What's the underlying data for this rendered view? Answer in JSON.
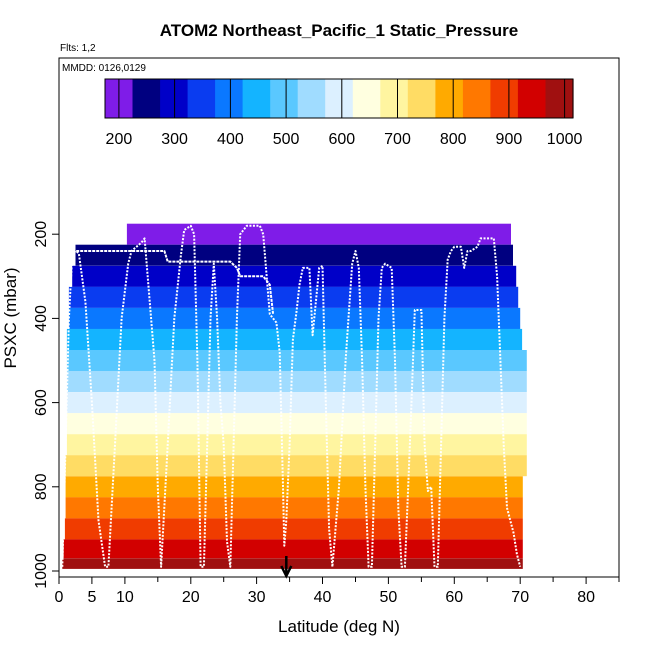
{
  "chart_data": {
    "type": "heatmap",
    "title": "ATOM2 Northeast_Pacific_1 Static_Pressure",
    "flights_note": "Flts: 1,2",
    "dates_note": "MMDD: 0126,0129",
    "xlabel": "Latitude (deg N)",
    "ylabel": "PSXC (mbar)",
    "xlim": [
      0,
      85
    ],
    "ylim": [
      1000,
      0
    ],
    "x_ticks": [
      0,
      5,
      10,
      20,
      30,
      40,
      50,
      60,
      70,
      80
    ],
    "y_ticks": [
      200,
      400,
      600,
      800,
      1000
    ],
    "colorbar": {
      "min": 175,
      "max": 1015,
      "ticks": [
        200,
        300,
        400,
        500,
        600,
        700,
        800,
        900,
        1000
      ],
      "colors": [
        "#7F1CE8",
        "#000080",
        "#0000C8",
        "#0A3CF0",
        "#0A78FF",
        "#14B4FF",
        "#5AC8FF",
        "#A0DCFF",
        "#DCF0FF",
        "#FFFFE0",
        "#FFF5A0",
        "#FFDC64",
        "#FFAA00",
        "#FF7800",
        "#F03C00",
        "#D20000",
        "#A01010"
      ]
    },
    "bands": [
      {
        "pressure": 200,
        "x_range": [
          10.3,
          68.6
        ]
      },
      {
        "pressure": 250,
        "x_range": [
          2.5,
          68.9
        ]
      },
      {
        "pressure": 300,
        "x_range": [
          2.0,
          69.4
        ]
      },
      {
        "pressure": 350,
        "x_range": [
          1.5,
          69.7
        ]
      },
      {
        "pressure": 400,
        "x_range": [
          1.5,
          70.0
        ]
      },
      {
        "pressure": 450,
        "x_range": [
          1.2,
          70.3
        ]
      },
      {
        "pressure": 500,
        "x_range": [
          1.2,
          71.0
        ]
      },
      {
        "pressure": 550,
        "x_range": [
          1.2,
          71.0
        ]
      },
      {
        "pressure": 600,
        "x_range": [
          1.2,
          71.0
        ]
      },
      {
        "pressure": 650,
        "x_range": [
          1.2,
          71.0
        ]
      },
      {
        "pressure": 700,
        "x_range": [
          1.2,
          71.0
        ]
      },
      {
        "pressure": 750,
        "x_range": [
          1.0,
          71.0
        ]
      },
      {
        "pressure": 800,
        "x_range": [
          1.0,
          70.4
        ]
      },
      {
        "pressure": 850,
        "x_range": [
          1.0,
          70.4
        ]
      },
      {
        "pressure": 900,
        "x_range": [
          0.9,
          70.4
        ]
      },
      {
        "pressure": 950,
        "x_range": [
          0.7,
          70.4
        ]
      },
      {
        "pressure": 990,
        "x_range": [
          0.5,
          70.4
        ]
      }
    ],
    "flight_track": [
      [
        0.5,
        990
      ],
      [
        1.0,
        700
      ],
      [
        1.5,
        400
      ],
      [
        2.0,
        250
      ],
      [
        2.5,
        240
      ],
      [
        3.0,
        245
      ],
      [
        4.0,
        360
      ],
      [
        5.0,
        600
      ],
      [
        6.0,
        880
      ],
      [
        7.0,
        990
      ],
      [
        7.5,
        990
      ],
      [
        8.5,
        700
      ],
      [
        9.5,
        400
      ],
      [
        10.5,
        270
      ],
      [
        11.0,
        240
      ],
      [
        12.5,
        220
      ],
      [
        13.0,
        210
      ],
      [
        14.5,
        500
      ],
      [
        15.0,
        800
      ],
      [
        15.5,
        990
      ],
      [
        16.5,
        700
      ],
      [
        17.5,
        400
      ],
      [
        18.5,
        250
      ],
      [
        19.0,
        190
      ],
      [
        20.0,
        180
      ],
      [
        20.5,
        200
      ],
      [
        21.0,
        500
      ],
      [
        21.5,
        990
      ],
      [
        22.0,
        990
      ],
      [
        22.5,
        700
      ],
      [
        23.0,
        400
      ],
      [
        23.5,
        270
      ],
      [
        24.0,
        400
      ],
      [
        24.5,
        600
      ],
      [
        25.0,
        700
      ],
      [
        25.5,
        930
      ],
      [
        26.0,
        990
      ],
      [
        26.5,
        700
      ],
      [
        27.0,
        400
      ],
      [
        27.5,
        200
      ],
      [
        28.5,
        180
      ],
      [
        29.5,
        180
      ],
      [
        30.5,
        180
      ],
      [
        31.0,
        200
      ],
      [
        32.0,
        390
      ],
      [
        33.0,
        410
      ],
      [
        33.5,
        480
      ],
      [
        34.0,
        800
      ],
      [
        34.2,
        940
      ],
      [
        34.5,
        880
      ],
      [
        35.0,
        700
      ],
      [
        35.5,
        450
      ],
      [
        36.0,
        390
      ],
      [
        36.5,
        320
      ],
      [
        37.0,
        280
      ],
      [
        38.0,
        280
      ],
      [
        38.5,
        440
      ],
      [
        39.5,
        280
      ],
      [
        40.0,
        275
      ],
      [
        40.5,
        600
      ],
      [
        41.0,
        900
      ],
      [
        41.5,
        990
      ],
      [
        42.5,
        800
      ],
      [
        43.5,
        500
      ],
      [
        44.5,
        270
      ],
      [
        45.0,
        240
      ],
      [
        45.5,
        280
      ],
      [
        46.0,
        500
      ],
      [
        46.5,
        800
      ],
      [
        47.0,
        990
      ],
      [
        47.5,
        990
      ],
      [
        48.0,
        700
      ],
      [
        48.5,
        400
      ],
      [
        49.0,
        280
      ],
      [
        49.5,
        270
      ],
      [
        50.5,
        280
      ],
      [
        51.0,
        500
      ],
      [
        51.5,
        850
      ],
      [
        52.0,
        990
      ],
      [
        52.5,
        990
      ],
      [
        53.0,
        800
      ],
      [
        53.5,
        600
      ],
      [
        54.0,
        380
      ],
      [
        55.0,
        380
      ],
      [
        55.5,
        700
      ],
      [
        56.0,
        810
      ],
      [
        56.5,
        800
      ],
      [
        57.0,
        990
      ],
      [
        57.5,
        990
      ],
      [
        58.0,
        700
      ],
      [
        58.5,
        400
      ],
      [
        59.0,
        260
      ],
      [
        59.5,
        240
      ],
      [
        60.0,
        230
      ],
      [
        61.0,
        230
      ],
      [
        61.5,
        280
      ],
      [
        62.0,
        240
      ],
      [
        62.5,
        240
      ],
      [
        63.5,
        230
      ],
      [
        64.0,
        210
      ],
      [
        65.0,
        210
      ],
      [
        66.0,
        210
      ],
      [
        66.5,
        300
      ],
      [
        67.0,
        500
      ],
      [
        67.5,
        700
      ],
      [
        68.0,
        850
      ],
      [
        69.0,
        910
      ],
      [
        69.5,
        960
      ],
      [
        70.0,
        990
      ]
    ],
    "upper_track": [
      [
        2.0,
        240
      ],
      [
        16.0,
        240
      ],
      [
        16.5,
        265
      ],
      [
        26.0,
        265
      ],
      [
        27.0,
        280
      ],
      [
        27.5,
        300
      ],
      [
        31.0,
        300
      ],
      [
        32.0,
        320
      ],
      [
        32.5,
        390
      ]
    ],
    "arrow_marker": {
      "x": 34.5,
      "pressure": 990
    }
  }
}
